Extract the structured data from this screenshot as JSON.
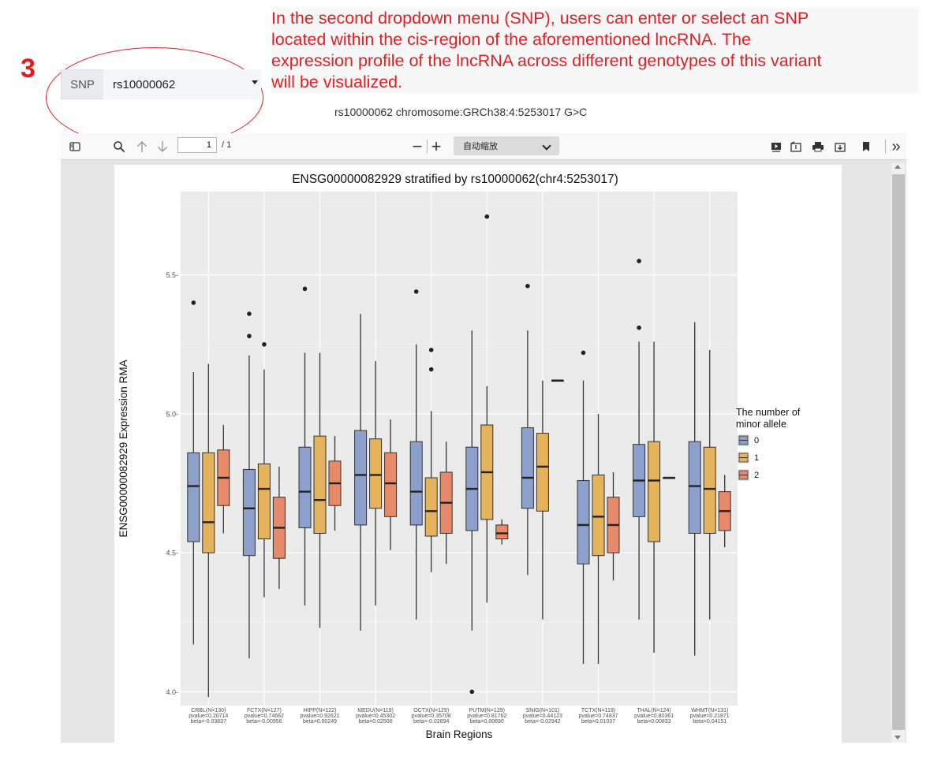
{
  "annotation": {
    "step_number": "3",
    "instruction_lines": [
      "In the second dropdown menu (SNP), users can enter or select an SNP",
      "located within the cis-region of the aforementioned lncRNA. The",
      "expression profile of the lncRNA across different genotypes of this variant",
      "will be visualized."
    ],
    "color": "#e31e24"
  },
  "snp_selector": {
    "label": "SNP",
    "value": "rs10000062",
    "info": "rs10000062 chromosome:GRCh38:4:5253017 G>C"
  },
  "pdf_toolbar": {
    "icons": [
      "sidebar-toggle-icon",
      "search-icon",
      "arrow-up-icon",
      "arrow-down-icon",
      "zoom-out-icon",
      "zoom-in-icon",
      "presentation-icon",
      "open-file-icon",
      "print-icon",
      "download-icon",
      "bookmark-icon",
      "more-tools-icon"
    ],
    "page_number": "1",
    "page_total": "/ 1",
    "zoom_out_glyph": "−",
    "zoom_in_glyph": "+",
    "zoom_value": "自动缩放",
    "more_glyph": "»"
  },
  "chart_data": {
    "type": "boxplot",
    "title": "ENSG00000082929 stratified by rs10000062(chr4:5253017)",
    "xlabel": "Brain Regions",
    "ylabel": "ENSG00000082929 Expression RMA",
    "ylim": [
      3.95,
      5.8
    ],
    "yticks": [
      4.0,
      4.5,
      5.0,
      5.5
    ],
    "ytick_labels": [
      "4.0-",
      "4.5-",
      "5.0-",
      "5.5-"
    ],
    "legend": {
      "title": [
        "The number of",
        "minor allele"
      ],
      "position": "right",
      "entries": [
        {
          "label": "0",
          "color": "#8da0cb"
        },
        {
          "label": "1",
          "color": "#e5b35b"
        },
        {
          "label": "2",
          "color": "#e8896a"
        }
      ]
    },
    "categories": [
      {
        "name": "CRBL(N=130)",
        "pvalue": "pvalue=0.20714",
        "beta": "beta=-0.03837"
      },
      {
        "name": "FCTX(N=127)",
        "pvalue": "pvalue=0.74662",
        "beta": "beta=-0.00956"
      },
      {
        "name": "HIPP(N=122)",
        "pvalue": "pvalue=0.92621",
        "beta": "beta=0.00249"
      },
      {
        "name": "MEDU(N=119)",
        "pvalue": "pvalue=0.45302",
        "beta": "beta=0.02506"
      },
      {
        "name": "OCTX(N=129)",
        "pvalue": "pvalue=0.35708",
        "beta": "beta=-0.02894"
      },
      {
        "name": "PUTM(N=129)",
        "pvalue": "pvalue=0.81762",
        "beta": "beta=0.00690"
      },
      {
        "name": "SNIG(N=101)",
        "pvalue": "pvalue=0.44123",
        "beta": "beta=-0.02942"
      },
      {
        "name": "TCTX(N=119)",
        "pvalue": "pvalue=0.74837",
        "beta": "beta=0.01037"
      },
      {
        "name": "THAL(N=124)",
        "pvalue": "pvalue=0.80361",
        "beta": "beta=0.00833"
      },
      {
        "name": "WHMT(N=131)",
        "pvalue": "pvalue=0.21871",
        "beta": "beta=0.04151"
      }
    ],
    "series": [
      {
        "name": "0",
        "color": "#8da0cb",
        "boxes": [
          {
            "min": 4.17,
            "q1": 4.54,
            "median": 4.74,
            "q3": 4.86,
            "max": 5.15,
            "outliers": [
              5.4
            ]
          },
          {
            "min": 4.12,
            "q1": 4.49,
            "median": 4.66,
            "q3": 4.8,
            "max": 5.21,
            "outliers": [
              5.36,
              5.28
            ]
          },
          {
            "min": 4.31,
            "q1": 4.59,
            "median": 4.72,
            "q3": 4.88,
            "max": 5.22,
            "outliers": [
              5.45
            ]
          },
          {
            "min": 4.22,
            "q1": 4.6,
            "median": 4.78,
            "q3": 4.94,
            "max": 5.36,
            "outliers": []
          },
          {
            "min": 4.26,
            "q1": 4.6,
            "median": 4.72,
            "q3": 4.9,
            "max": 5.25,
            "outliers": [
              5.44
            ]
          },
          {
            "min": 4.22,
            "q1": 4.58,
            "median": 4.73,
            "q3": 4.88,
            "max": 5.3,
            "outliers": [
              4.0
            ]
          },
          {
            "min": 4.42,
            "q1": 4.66,
            "median": 4.77,
            "q3": 4.95,
            "max": 5.3,
            "outliers": [
              5.46
            ]
          },
          {
            "min": 4.1,
            "q1": 4.46,
            "median": 4.6,
            "q3": 4.76,
            "max": 5.12,
            "outliers": [
              5.22
            ]
          },
          {
            "min": 4.26,
            "q1": 4.63,
            "median": 4.76,
            "q3": 4.89,
            "max": 5.26,
            "outliers": [
              5.55,
              5.31
            ]
          },
          {
            "min": 4.13,
            "q1": 4.57,
            "median": 4.74,
            "q3": 4.9,
            "max": 5.33,
            "outliers": []
          }
        ]
      },
      {
        "name": "1",
        "color": "#e5b35b",
        "boxes": [
          {
            "min": 3.98,
            "q1": 4.5,
            "median": 4.61,
            "q3": 4.86,
            "max": 5.18,
            "outliers": []
          },
          {
            "min": 4.34,
            "q1": 4.55,
            "median": 4.73,
            "q3": 4.82,
            "max": 5.16,
            "outliers": [
              5.25
            ]
          },
          {
            "min": 4.23,
            "q1": 4.57,
            "median": 4.69,
            "q3": 4.92,
            "max": 5.22,
            "outliers": []
          },
          {
            "min": 4.31,
            "q1": 4.66,
            "median": 4.78,
            "q3": 4.91,
            "max": 5.19,
            "outliers": []
          },
          {
            "min": 4.43,
            "q1": 4.56,
            "median": 4.65,
            "q3": 4.77,
            "max": 5.01,
            "outliers": [
              5.23,
              5.16
            ]
          },
          {
            "min": 4.32,
            "q1": 4.62,
            "median": 4.79,
            "q3": 4.96,
            "max": 5.1,
            "outliers": [
              5.71
            ]
          },
          {
            "min": 4.26,
            "q1": 4.65,
            "median": 4.81,
            "q3": 4.93,
            "max": 5.12,
            "outliers": []
          },
          {
            "min": 4.1,
            "q1": 4.49,
            "median": 4.63,
            "q3": 4.78,
            "max": 5.0,
            "outliers": []
          },
          {
            "min": 4.14,
            "q1": 4.54,
            "median": 4.76,
            "q3": 4.9,
            "max": 5.26,
            "outliers": []
          },
          {
            "min": 4.26,
            "q1": 4.57,
            "median": 4.73,
            "q3": 4.88,
            "max": 5.23,
            "outliers": []
          }
        ]
      },
      {
        "name": "2",
        "color": "#e8896a",
        "boxes": [
          {
            "min": 4.57,
            "q1": 4.67,
            "median": 4.77,
            "q3": 4.87,
            "max": 4.96,
            "outliers": []
          },
          {
            "min": 4.37,
            "q1": 4.48,
            "median": 4.59,
            "q3": 4.7,
            "max": 4.81,
            "outliers": []
          },
          {
            "min": 4.58,
            "q1": 4.67,
            "median": 4.75,
            "q3": 4.83,
            "max": 4.92,
            "outliers": []
          },
          {
            "min": 4.51,
            "q1": 4.63,
            "median": 4.75,
            "q3": 4.86,
            "max": 4.98,
            "outliers": []
          },
          {
            "min": 4.46,
            "q1": 4.57,
            "median": 4.68,
            "q3": 4.79,
            "max": 4.9,
            "outliers": []
          },
          {
            "min": 4.53,
            "q1": 4.55,
            "median": 4.57,
            "q3": 4.6,
            "max": 4.62,
            "outliers": []
          },
          {
            "min": 5.12,
            "q1": 5.12,
            "median": 5.12,
            "q3": 5.12,
            "max": 5.12,
            "outliers": []
          },
          {
            "min": 4.4,
            "q1": 4.5,
            "median": 4.6,
            "q3": 4.7,
            "max": 4.79,
            "outliers": []
          },
          {
            "min": 4.77,
            "q1": 4.77,
            "median": 4.77,
            "q3": 4.77,
            "max": 4.77,
            "outliers": []
          },
          {
            "min": 4.52,
            "q1": 4.58,
            "median": 4.65,
            "q3": 4.72,
            "max": 4.78,
            "outliers": []
          }
        ]
      }
    ]
  }
}
